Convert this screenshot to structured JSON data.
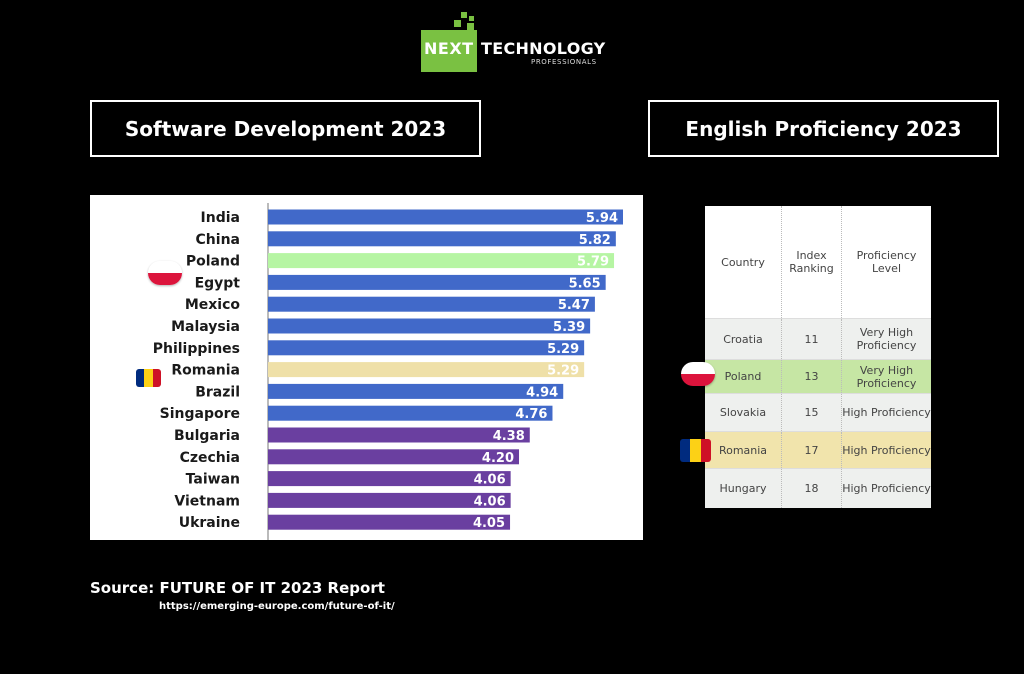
{
  "logo": {
    "brand_left": "NEXT",
    "brand_right": "TECHNOLOGY",
    "sub": "PROFESSIONALS"
  },
  "titles": {
    "left": "Software Development 2023",
    "right": "English Proficiency 2023"
  },
  "chart_data": {
    "type": "bar",
    "orientation": "horizontal",
    "title": "",
    "xlabel": "",
    "ylabel": "",
    "categories": [
      "India",
      "China",
      "Poland",
      "Egypt",
      "Mexico",
      "Malaysia",
      "Philippines",
      "Romania",
      "Brazil",
      "Singapore",
      "Bulgaria",
      "Czechia",
      "Taiwan",
      "Vietnam",
      "Ukraine"
    ],
    "values": [
      5.94,
      5.82,
      5.79,
      5.65,
      5.47,
      5.39,
      5.29,
      5.29,
      4.94,
      4.76,
      4.38,
      4.2,
      4.06,
      4.06,
      4.05
    ],
    "labels": [
      "5.94",
      "5.82",
      "5.79",
      "5.65",
      "5.47",
      "5.39",
      "5.29",
      "5.29",
      "4.94",
      "4.76",
      "4.38",
      "4.20",
      "4.06",
      "4.06",
      "4.05"
    ],
    "bar_colors": [
      "#4169c9",
      "#4169c9",
      "#b6f5a3",
      "#4169c9",
      "#4169c9",
      "#4169c9",
      "#4169c9",
      "#efe0a8",
      "#4169c9",
      "#4169c9",
      "#6a3fa0",
      "#6a3fa0",
      "#6a3fa0",
      "#6a3fa0",
      "#6a3fa0"
    ],
    "xlim": [
      0,
      5.94
    ],
    "grid": false,
    "legend": "none"
  },
  "table": {
    "headers": [
      "Country",
      "Index Ranking",
      "Proficiency Level"
    ],
    "rows": [
      {
        "country": "Croatia",
        "rank": "11",
        "level": "Very High Proficiency",
        "bg": "#eef0ee"
      },
      {
        "country": "Poland",
        "rank": "13",
        "level": "Very High Proficiency",
        "bg": "#c6e6a4"
      },
      {
        "country": "Slovakia",
        "rank": "15",
        "level": "High Proficiency",
        "bg": "#eef0ee"
      },
      {
        "country": "Romania",
        "rank": "17",
        "level": "High Proficiency",
        "bg": "#f1e4ac"
      },
      {
        "country": "Hungary",
        "rank": "18",
        "level": "High Proficiency",
        "bg": "#eef0ee"
      }
    ]
  },
  "colors": {
    "poland_red": "#dc143c",
    "romania_blue": "#002b7f",
    "romania_yellow": "#fcd116",
    "romania_red": "#ce1126"
  },
  "source": {
    "title": "Source: FUTURE OF IT 2023 Report",
    "url": "https://emerging-europe.com/future-of-it/"
  }
}
